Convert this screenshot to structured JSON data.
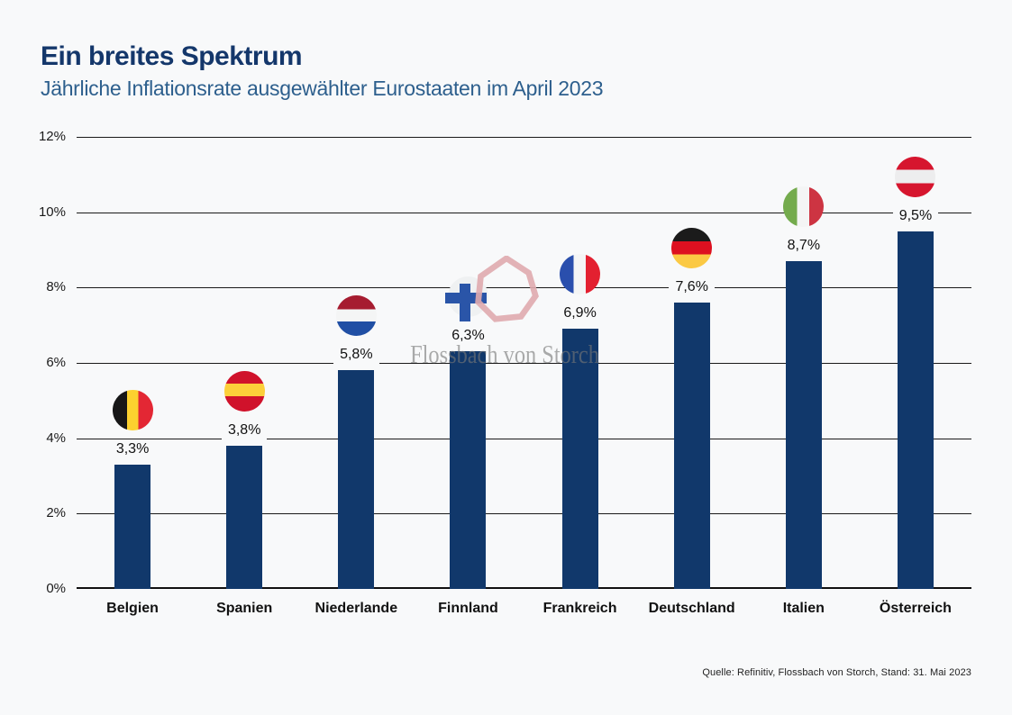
{
  "header": {
    "title": "Ein breites Spektrum",
    "subtitle": "Jährliche Inflationsrate ausgewählter Eurostaaten im April 2023"
  },
  "chart_data": {
    "type": "bar",
    "title": "Ein breites Spektrum",
    "subtitle": "Jährliche Inflationsrate ausgewählter Eurostaaten im April 2023",
    "categories": [
      "Belgien",
      "Spanien",
      "Niederlande",
      "Finnland",
      "Frankreich",
      "Deutschland",
      "Italien",
      "Österreich"
    ],
    "values": [
      3.3,
      3.8,
      5.8,
      6.3,
      6.9,
      7.6,
      8.7,
      9.5
    ],
    "value_labels": [
      "3,3%",
      "3,8%",
      "5,8%",
      "6,3%",
      "6,9%",
      "7,6%",
      "8,7%",
      "9,5%"
    ],
    "xlabel": "",
    "ylabel": "",
    "ylim": [
      0,
      12
    ],
    "ytick_step": 2,
    "yticks": [
      "12%",
      "10%",
      "8%",
      "6%",
      "4%",
      "2%",
      "0%"
    ],
    "grid": true,
    "legend_position": "none",
    "bar_color": "#11386b",
    "flags": [
      {
        "country": "Belgien",
        "orientation": "vertical",
        "stripes": [
          {
            "color": "#171717",
            "from": 0,
            "to": 36
          },
          {
            "color": "#fcd12f",
            "from": 36,
            "to": 63
          },
          {
            "color": "#e32734",
            "from": 63,
            "to": 100
          }
        ]
      },
      {
        "country": "Spanien",
        "orientation": "horizontal",
        "stripes": [
          {
            "color": "#d0122b",
            "from": 0,
            "to": 31
          },
          {
            "color": "#fccf3a",
            "from": 31,
            "to": 62
          },
          {
            "color": "#d0122b",
            "from": 62,
            "to": 100
          }
        ]
      },
      {
        "country": "Niederlande",
        "orientation": "horizontal",
        "stripes": [
          {
            "color": "#a61c30",
            "from": 0,
            "to": 34
          },
          {
            "color": "#f4f5f5",
            "from": 34,
            "to": 64
          },
          {
            "color": "#204fa4",
            "from": 64,
            "to": 100
          }
        ]
      },
      {
        "country": "Finnland",
        "orientation": "nordic-cross",
        "background": "#eff1f2",
        "cross_color": "#2a55a8"
      },
      {
        "country": "Frankreich",
        "orientation": "vertical",
        "stripes": [
          {
            "color": "#2a4fad",
            "from": 0,
            "to": 34
          },
          {
            "color": "#f4f5f5",
            "from": 34,
            "to": 64
          },
          {
            "color": "#e32030",
            "from": 64,
            "to": 100
          }
        ]
      },
      {
        "country": "Deutschland",
        "orientation": "horizontal",
        "stripes": [
          {
            "color": "#1b1b1b",
            "from": 0,
            "to": 33
          },
          {
            "color": "#dd1020",
            "from": 33,
            "to": 66
          },
          {
            "color": "#fbc944",
            "from": 66,
            "to": 100
          }
        ]
      },
      {
        "country": "Italien",
        "orientation": "vertical",
        "stripes": [
          {
            "color": "#74ab4d",
            "from": 0,
            "to": 34
          },
          {
            "color": "#f4f5f5",
            "from": 34,
            "to": 64
          },
          {
            "color": "#cd3442",
            "from": 64,
            "to": 100
          }
        ]
      },
      {
        "country": "Österreich",
        "orientation": "horizontal",
        "stripes": [
          {
            "color": "#d6152e",
            "from": 0,
            "to": 32
          },
          {
            "color": "#ededee",
            "from": 32,
            "to": 66
          },
          {
            "color": "#d6152e",
            "from": 66,
            "to": 100
          }
        ]
      }
    ]
  },
  "watermark": {
    "text": "Flossbach von Storch",
    "logo_color": "#e0abaf"
  },
  "footer": {
    "source": "Quelle: Refinitiv, Flossbach von Storch, Stand: 31. Mai 2023"
  }
}
